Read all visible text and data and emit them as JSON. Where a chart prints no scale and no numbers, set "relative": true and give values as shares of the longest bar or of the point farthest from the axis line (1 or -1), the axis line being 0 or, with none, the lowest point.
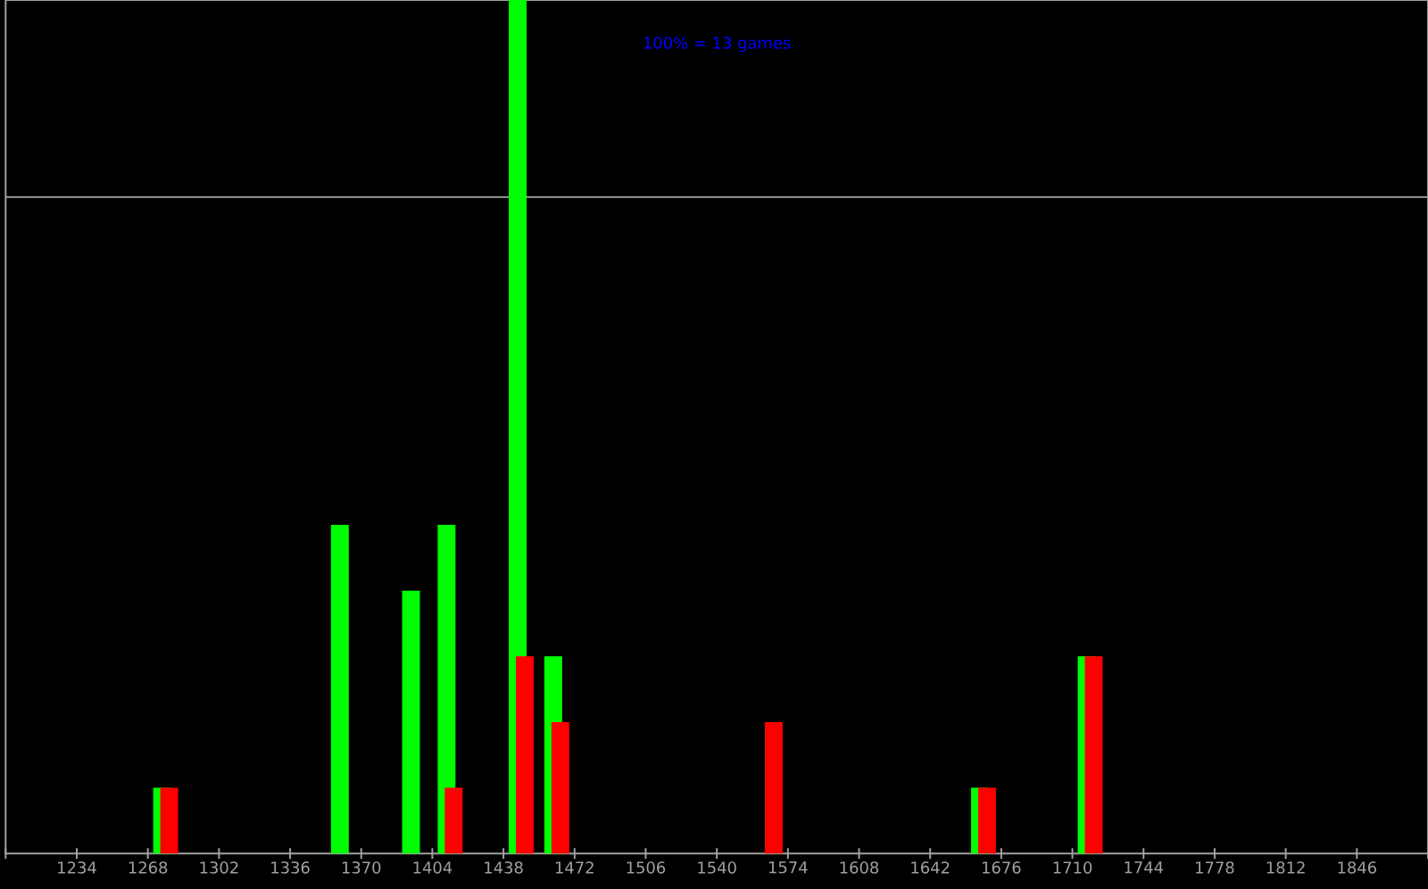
{
  "chart_data": {
    "type": "bar",
    "relative": true,
    "annotations": [
      "100% = 13 games"
    ],
    "x": [
      1276.5,
      1361.5,
      1395.5,
      1412.5,
      1446.5,
      1463.5,
      1565.5,
      1667.5,
      1718.5
    ],
    "series": [
      {
        "color": "#00ff00",
        "values": [
          0.077,
          0.385,
          0.308,
          0.385,
          1,
          0.231,
          null,
          0.077,
          0.231
        ]
      },
      {
        "color": "#ff0000",
        "values": [
          0.077,
          null,
          null,
          0.077,
          0.231,
          0.154,
          0.154,
          0.077,
          0.231
        ]
      }
    ],
    "xlim": [
      1200,
      1880
    ],
    "xticks": [
      {
        "value": 1200,
        "label": null
      },
      1234,
      1268,
      1302,
      1336,
      1370,
      1404,
      1438,
      1472,
      1506,
      1540,
      1574,
      1608,
      1642,
      1676,
      1710,
      1744,
      1778,
      1812,
      1846,
      {
        "value": 1880,
        "label": null
      }
    ],
    "ref_lines": [
      {
        "axis": "y",
        "value": 0.769,
        "color": "#a0a0a0"
      }
    ]
  }
}
